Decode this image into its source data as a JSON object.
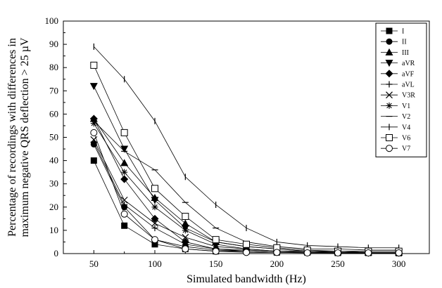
{
  "chart_data": {
    "type": "line",
    "title": "",
    "xlabel": "Simulated bandwidth (Hz)",
    "ylabel_lines": [
      "Percentage of recordings with differences in",
      "maximum negative QRS deflection > 25 µV"
    ],
    "x": [
      50,
      75,
      100,
      125,
      150,
      175,
      200,
      225,
      250,
      275,
      300
    ],
    "xlim": [
      25,
      325
    ],
    "ylim": [
      0,
      100
    ],
    "xticks": [
      50,
      100,
      150,
      200,
      250,
      300
    ],
    "yticks": [
      0,
      10,
      20,
      30,
      40,
      50,
      60,
      70,
      80,
      90,
      100
    ],
    "grid": false,
    "legend_position": "top-right",
    "series": [
      {
        "name": "I",
        "marker": "square-filled",
        "values": [
          40,
          12,
          4,
          2,
          1,
          1,
          0.5,
          0.5,
          0.3,
          0.3,
          0.2
        ]
      },
      {
        "name": "II",
        "marker": "circle-filled",
        "values": [
          47,
          20,
          6,
          3,
          1.5,
          1,
          0.5,
          0.5,
          0.5,
          0.3,
          0.3
        ]
      },
      {
        "name": "III",
        "marker": "triangle-up",
        "values": [
          58,
          39,
          24,
          13,
          5,
          3,
          2,
          1,
          1,
          0.5,
          0.5
        ]
      },
      {
        "name": "aVR",
        "marker": "triangle-down",
        "values": [
          72,
          45,
          23,
          11,
          5,
          3,
          2,
          1,
          1,
          0.5,
          0.5
        ]
      },
      {
        "name": "aVF",
        "marker": "diamond-filled",
        "values": [
          58,
          32,
          15,
          5,
          2,
          1.5,
          1,
          0.5,
          0.5,
          0.3,
          0.3
        ]
      },
      {
        "name": "aVL",
        "marker": "plus",
        "values": [
          48,
          21,
          11,
          4,
          2,
          1,
          0.5,
          0.5,
          0.5,
          0.3,
          0.3
        ]
      },
      {
        "name": "V3R",
        "marker": "x",
        "values": [
          49,
          23,
          13,
          7,
          3,
          2,
          1,
          1,
          0.5,
          0.5,
          0.5
        ]
      },
      {
        "name": "V1",
        "marker": "asterisk",
        "values": [
          56,
          35,
          20,
          10,
          4,
          2,
          1,
          1,
          0.5,
          0.5,
          0.5
        ]
      },
      {
        "name": "V2",
        "marker": "hline",
        "values": [
          57,
          44,
          36,
          22,
          11,
          5,
          3,
          2,
          2,
          1.5,
          1.5
        ]
      },
      {
        "name": "V4",
        "marker": "vline",
        "values": [
          89,
          75,
          57,
          33,
          21,
          11,
          5,
          3.5,
          3,
          2.5,
          2.5
        ]
      },
      {
        "name": "V6",
        "marker": "square-open",
        "values": [
          81,
          52,
          28,
          16,
          6,
          4,
          2.5,
          1.5,
          1,
          1,
          1
        ]
      },
      {
        "name": "V7",
        "marker": "circle-open",
        "values": [
          52,
          17,
          6,
          2,
          1,
          0.5,
          0.5,
          0.3,
          0.3,
          0.3,
          0.3
        ]
      }
    ]
  }
}
